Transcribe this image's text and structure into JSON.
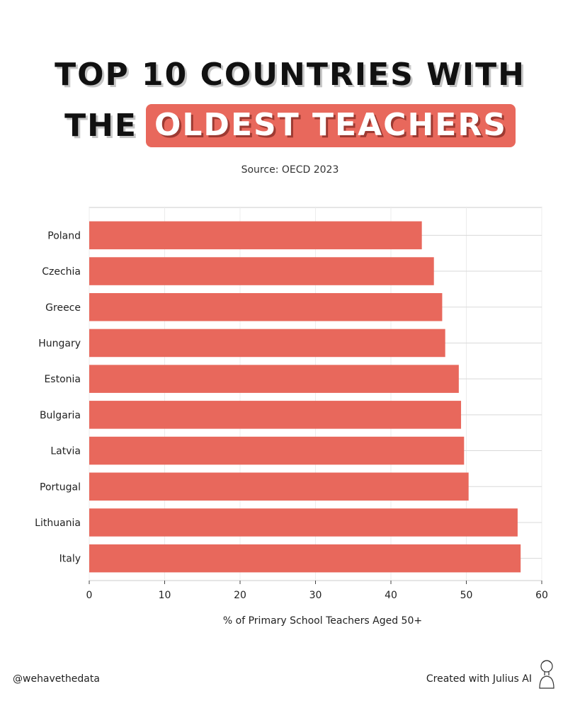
{
  "title": {
    "line1": "TOP 10 COUNTRIES WITH",
    "line2_plain": "THE",
    "line2_highlight": "OLDEST TEACHERS"
  },
  "source": "Source: OECD 2023",
  "footer": {
    "handle": "@wehavethedata",
    "credit": "Created with Julius AI"
  },
  "colors": {
    "accent": "#e8685c",
    "bar": "#e8685c"
  },
  "chart_data": {
    "type": "bar",
    "orientation": "horizontal",
    "categories": [
      "Poland",
      "Czechia",
      "Greece",
      "Hungary",
      "Estonia",
      "Bulgaria",
      "Latvia",
      "Portugal",
      "Lithuania",
      "Italy"
    ],
    "values": [
      44.1,
      45.7,
      46.8,
      47.2,
      49.0,
      49.3,
      49.7,
      50.3,
      56.8,
      57.2
    ],
    "xlabel": "% of Primary School Teachers Aged 50+",
    "ylabel": "",
    "xlim": [
      0,
      60
    ],
    "xticks": [
      0,
      10,
      20,
      30,
      40,
      50,
      60
    ],
    "grid": true
  }
}
